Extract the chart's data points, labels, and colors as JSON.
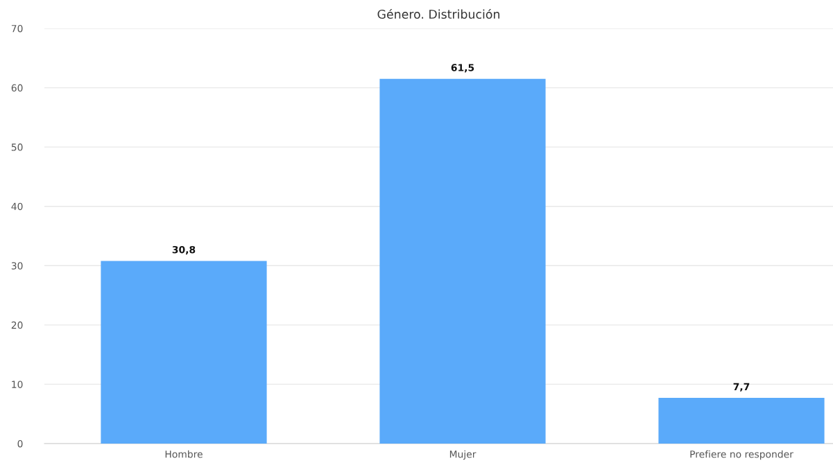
{
  "chart_data": {
    "type": "bar",
    "title": "Género. Distribución",
    "categories": [
      "Hombre",
      "Mujer",
      "Prefiere no responder"
    ],
    "values": [
      30.8,
      61.5,
      7.7
    ],
    "color": "#5aaafa",
    "value_labels": [
      "30,8",
      "61,5",
      "7,7"
    ],
    "ylim": [
      0,
      70
    ],
    "yticks": [
      0,
      10,
      20,
      30,
      40,
      50,
      60,
      70
    ],
    "grid": "y",
    "legend": false
  }
}
